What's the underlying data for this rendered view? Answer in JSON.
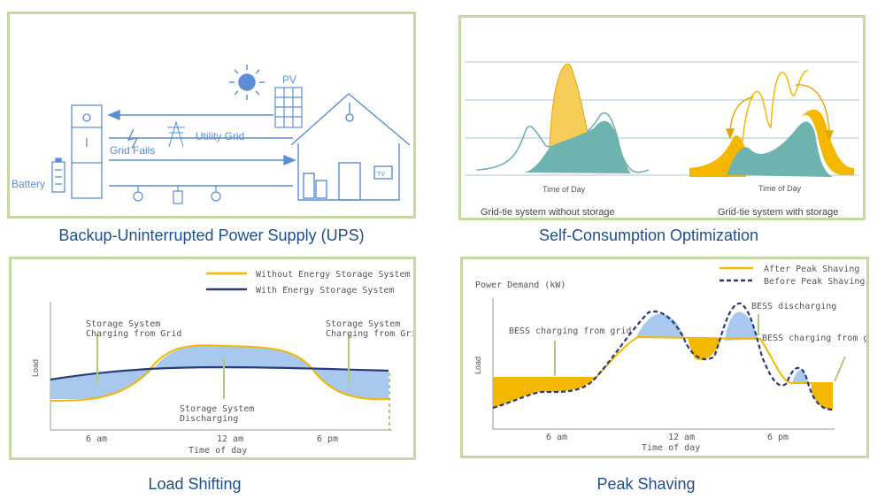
{
  "captions": {
    "ups": "Backup-Uninterrupted Power Supply (UPS)",
    "self": "Self-Consumption Optimization",
    "load": "Load Shifting",
    "peak": "Peak Shaving"
  },
  "ups": {
    "pv": "PV",
    "utility_grid": "Utility Grid",
    "grid_fails": "Grid Fails",
    "battery": "Battery",
    "tv": "TV"
  },
  "self": {
    "xlabel_left": "Time of Day",
    "xlabel_right": "Time of Day",
    "sub_left": "Grid-tie system without storage",
    "sub_right": "Grid-tie system with storage"
  },
  "load": {
    "legend_without": "Without Energy Storage System",
    "legend_with": "With Energy Storage System",
    "ann_charge_left_1": "Storage System",
    "ann_charge_left_2": "Charging from Grid",
    "ann_charge_right_1": "Storage System",
    "ann_charge_right_2": "Charging from Grid",
    "ann_discharge_1": "Storage System",
    "ann_discharge_2": "Discharging",
    "ylabel": "Load",
    "ticks": [
      "6 am",
      "12 am",
      "6 pm"
    ],
    "xlabel": "Time of day"
  },
  "peak": {
    "legend_after": "After Peak Shaving",
    "legend_before": "Before Peak Shaving",
    "ylabel_top": "Power Demand (kW)",
    "ann_charging_left": "BESS charging from grid",
    "ann_discharging": "BESS discharging",
    "ann_charging_right": "BESS charging from grid",
    "ylabel": "Load",
    "ticks": [
      "6 am",
      "12 am",
      "6 pm"
    ],
    "xlabel": "Time of day"
  },
  "colors": {
    "border": "#c5d9a0",
    "caption": "#1f4e8c",
    "orange": "#f5b800",
    "navy": "#2b3a7a",
    "fill_blue": "#a9c8ee",
    "teal": "#6fb3b0",
    "ups_blue": "#5b8ed6"
  }
}
